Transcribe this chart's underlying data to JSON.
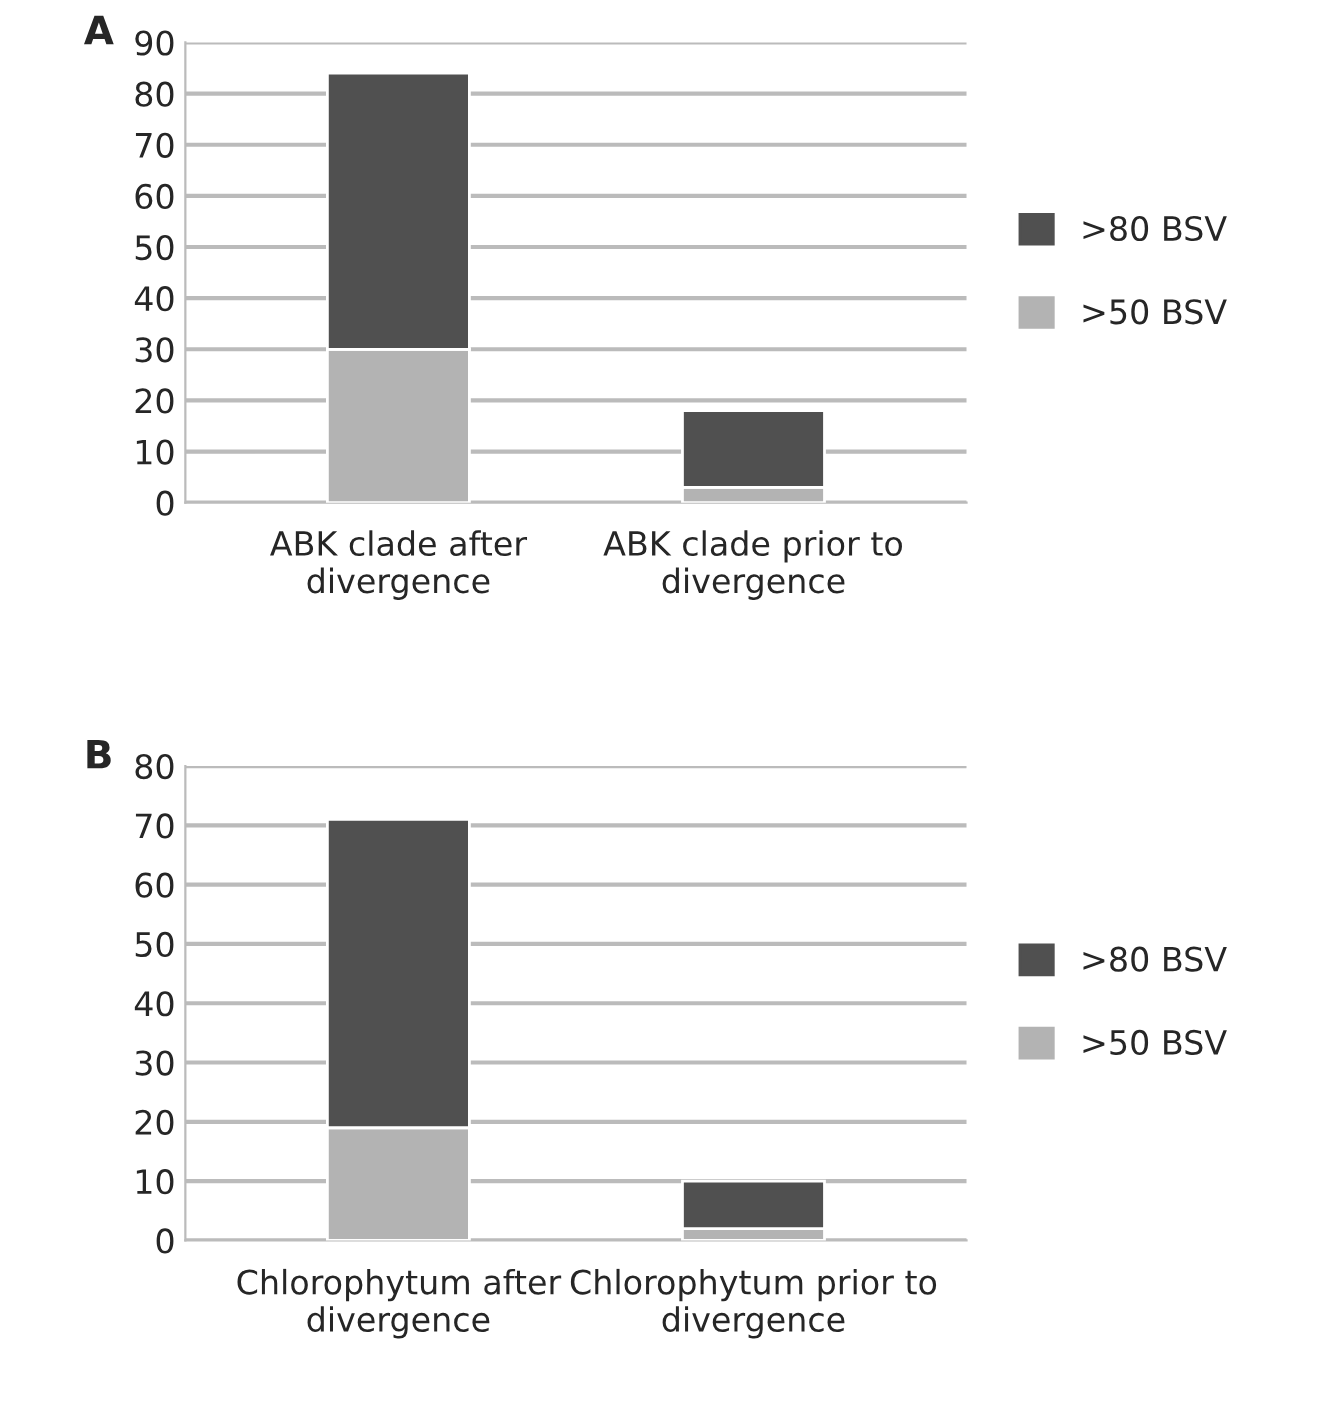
{
  "chart_data": [
    {
      "type": "bar",
      "title": "A",
      "stacked": true,
      "categories": [
        "ABK clade after divergence",
        "ABK clade prior to divergence"
      ],
      "series": [
        {
          "name": ">50 BSV",
          "color": "#b3b3b3",
          "values": [
            30,
            3
          ]
        },
        {
          "name": ">80 BSV",
          "color": "#505050",
          "values": [
            54,
            15
          ]
        }
      ],
      "ylim": [
        0,
        90
      ],
      "yticks": [
        0,
        10,
        20,
        30,
        40,
        50,
        60,
        70,
        80,
        90
      ],
      "grid": "y",
      "legend": "right"
    },
    {
      "type": "bar",
      "title": "B",
      "stacked": true,
      "categories": [
        "Chlorophytum after divergence",
        "Chlorophytum prior to divergence"
      ],
      "series": [
        {
          "name": ">50 BSV",
          "color": "#b3b3b3",
          "values": [
            19,
            2
          ]
        },
        {
          "name": ">80 BSV",
          "color": "#505050",
          "values": [
            52,
            8
          ]
        }
      ],
      "ylim": [
        0,
        80
      ],
      "yticks": [
        0,
        10,
        20,
        30,
        40,
        50,
        60,
        70,
        80
      ],
      "grid": "y",
      "legend": "right"
    }
  ]
}
